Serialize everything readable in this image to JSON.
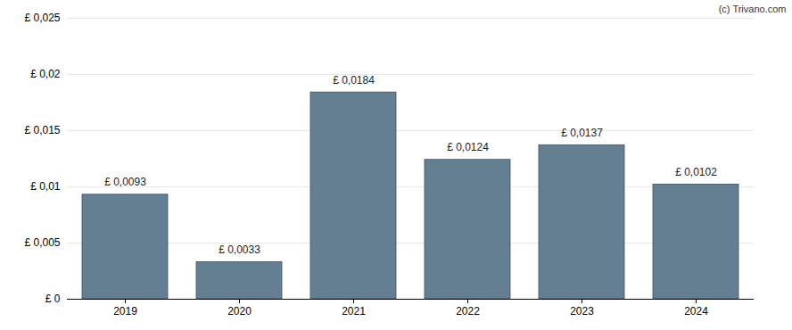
{
  "chart_data": {
    "type": "bar",
    "caption": "(c) Trivano.com",
    "categories": [
      "2019",
      "2020",
      "2021",
      "2022",
      "2023",
      "2024"
    ],
    "values": [
      0.0093,
      0.0033,
      0.0184,
      0.0124,
      0.0137,
      0.0102
    ],
    "value_labels": [
      "£ 0,0093",
      "£ 0,0033",
      "£ 0,0184",
      "£ 0,0124",
      "£ 0,0137",
      "£ 0,0102"
    ],
    "data_labels": true,
    "color": "#647f91",
    "ylim": [
      0,
      0.025
    ],
    "yticks": [
      {
        "value": 0,
        "label": "£ 0"
      },
      {
        "value": 0.005,
        "label": "£ 0,005"
      },
      {
        "value": 0.01,
        "label": "£ 0,01"
      },
      {
        "value": 0.015,
        "label": "£ 0,015"
      },
      {
        "value": 0.02,
        "label": "£ 0,02"
      },
      {
        "value": 0.025,
        "label": "£ 0,025"
      }
    ],
    "grid": true
  }
}
